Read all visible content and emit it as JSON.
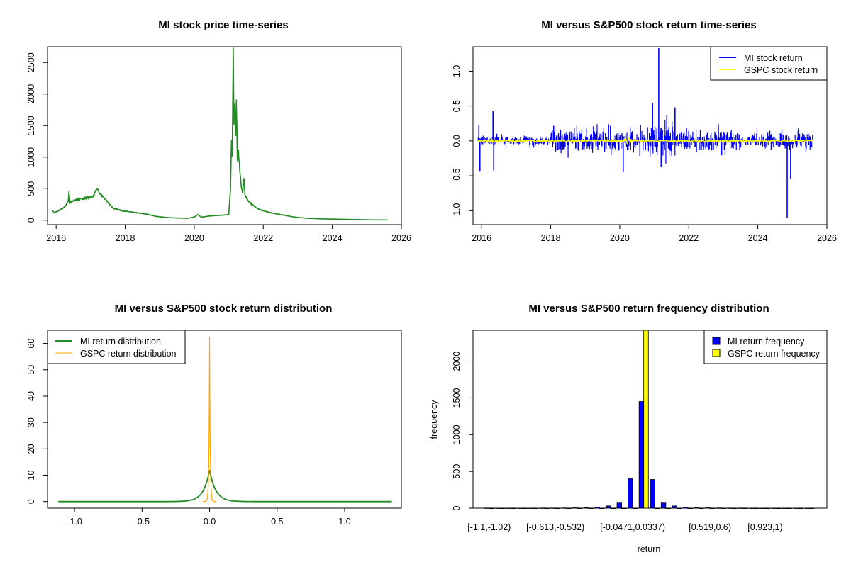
{
  "chart_data": [
    {
      "type": "line",
      "title": "MI stock price time-series",
      "xlabel": "",
      "ylabel": "",
      "xlim": [
        2015.75,
        2026
      ],
      "ylim": [
        -70,
        2750
      ],
      "xticks": [
        2016,
        2018,
        2020,
        2022,
        2024,
        2026
      ],
      "yticks": [
        0,
        500,
        1000,
        1500,
        2000,
        2500
      ],
      "series": [
        {
          "name": "MI stock price",
          "color": "#228B22",
          "points": [
            [
              2015.9,
              150
            ],
            [
              2015.95,
              120
            ],
            [
              2016.1,
              160
            ],
            [
              2016.25,
              210
            ],
            [
              2016.35,
              300
            ],
            [
              2016.37,
              460
            ],
            [
              2016.4,
              280
            ],
            [
              2016.55,
              320
            ],
            [
              2016.75,
              340
            ],
            [
              2016.95,
              360
            ],
            [
              2017.1,
              390
            ],
            [
              2017.15,
              480
            ],
            [
              2017.2,
              500
            ],
            [
              2017.25,
              430
            ],
            [
              2017.4,
              350
            ],
            [
              2017.55,
              250
            ],
            [
              2017.65,
              190
            ],
            [
              2017.8,
              170
            ],
            [
              2017.9,
              150
            ],
            [
              2018.05,
              140
            ],
            [
              2018.3,
              120
            ],
            [
              2018.6,
              100
            ],
            [
              2018.9,
              60
            ],
            [
              2019.3,
              40
            ],
            [
              2019.8,
              30
            ],
            [
              2020.0,
              50
            ],
            [
              2020.1,
              90
            ],
            [
              2020.2,
              50
            ],
            [
              2020.5,
              70
            ],
            [
              2020.8,
              80
            ],
            [
              2021.0,
              90
            ],
            [
              2021.05,
              500
            ],
            [
              2021.08,
              1300
            ],
            [
              2021.1,
              1000
            ],
            [
              2021.13,
              2700
            ],
            [
              2021.15,
              1500
            ],
            [
              2021.17,
              1900
            ],
            [
              2021.2,
              1300
            ],
            [
              2021.22,
              1950
            ],
            [
              2021.25,
              950
            ],
            [
              2021.28,
              1100
            ],
            [
              2021.32,
              800
            ],
            [
              2021.36,
              550
            ],
            [
              2021.4,
              420
            ],
            [
              2021.44,
              660
            ],
            [
              2021.47,
              400
            ],
            [
              2021.55,
              320
            ],
            [
              2021.65,
              260
            ],
            [
              2021.75,
              220
            ],
            [
              2021.85,
              180
            ],
            [
              2022.0,
              150
            ],
            [
              2022.2,
              120
            ],
            [
              2022.5,
              90
            ],
            [
              2022.9,
              50
            ],
            [
              2023.3,
              30
            ],
            [
              2023.8,
              20
            ],
            [
              2024.3,
              15
            ],
            [
              2024.8,
              10
            ],
            [
              2025.2,
              5
            ],
            [
              2025.6,
              5
            ]
          ]
        }
      ]
    },
    {
      "type": "line",
      "title": "MI versus S&P500 stock return time-series",
      "xlabel": "",
      "ylabel": "",
      "xlim": [
        2015.75,
        2026
      ],
      "ylim": [
        -1.2,
        1.35
      ],
      "xticks": [
        2016,
        2018,
        2020,
        2022,
        2024,
        2026
      ],
      "yticks": [
        -1.0,
        -0.5,
        0.0,
        0.5,
        1.0
      ],
      "ytick_labels": [
        "-1.0",
        "-0.5",
        "0.0",
        "0.5",
        "1.0"
      ],
      "xrange": [
        2015.9,
        2025.6
      ],
      "series": [
        {
          "name": "MI stock return",
          "color": "#0000FF"
        },
        {
          "name": "GSPC stock return",
          "color": "#FFFF00"
        }
      ],
      "spikes": [
        [
          2015.92,
          0.22
        ],
        [
          2015.95,
          -0.43
        ],
        [
          2016.33,
          0.43
        ],
        [
          2016.35,
          -0.42
        ],
        [
          2020.1,
          -0.45
        ],
        [
          2021.13,
          1.33
        ],
        [
          2021.2,
          -0.37
        ],
        [
          2020.95,
          0.54
        ],
        [
          2021.6,
          0.48
        ],
        [
          2024.85,
          -1.1
        ],
        [
          2024.95,
          -0.55
        ]
      ],
      "legend": [
        "MI stock return",
        "GSPC stock return"
      ],
      "legend_position": "top-right"
    },
    {
      "type": "line",
      "title": "MI versus S&P500 stock return distribution",
      "xlabel": "",
      "ylabel": "",
      "xlim": [
        -1.2,
        1.42
      ],
      "ylim": [
        -2.5,
        65
      ],
      "xticks": [
        -1.0,
        -0.5,
        0.0,
        0.5,
        1.0
      ],
      "xtick_labels": [
        "-1.0",
        "-0.5",
        "0.0",
        "0.5",
        "1.0"
      ],
      "yticks": [
        0,
        10,
        20,
        30,
        40,
        50,
        60
      ],
      "series": [
        {
          "name": "MI return distribution",
          "color": "#228B22",
          "peak": 12,
          "scale": 0.045,
          "range": [
            -1.12,
            1.35
          ]
        },
        {
          "name": "GSPC return distribution",
          "color": "#FFA500",
          "peak": 62.5,
          "scale": 0.007,
          "range": [
            -0.05,
            0.05
          ]
        }
      ],
      "legend": [
        "MI return distribution",
        "GSPC return distribution"
      ],
      "legend_position": "top-left"
    },
    {
      "type": "bar",
      "title": "MI versus S&P500 return frequency distribution",
      "xlabel": "return",
      "ylabel": "frequency",
      "ylim": [
        0,
        2420
      ],
      "yticks": [
        0,
        500,
        1000,
        1500,
        2000
      ],
      "category_labels": [
        "[-1.1,-1.02)",
        "[-0.613,-0.532)",
        "[-0.0471,0.0337)",
        "[0.519,0.6)",
        "[0.923,1)"
      ],
      "category_label_bins": [
        0,
        6,
        13,
        20,
        25
      ],
      "n_bins": 30,
      "series": [
        {
          "name": "MI return frequency",
          "color": "#0000FF",
          "values": [
            2,
            1,
            1,
            1,
            1,
            2,
            2,
            3,
            5,
            8,
            15,
            30,
            80,
            400,
            1450,
            390,
            80,
            30,
            15,
            8,
            5,
            3,
            2,
            2,
            1,
            1,
            1,
            1,
            1,
            1
          ]
        },
        {
          "name": "GSPC return frequency",
          "color": "#FFFF00",
          "values": [
            0,
            0,
            0,
            0,
            0,
            0,
            0,
            0,
            0,
            0,
            0,
            0,
            0,
            0,
            2450,
            0,
            0,
            0,
            0,
            0,
            0,
            0,
            0,
            0,
            0,
            0,
            0,
            0,
            0,
            0
          ]
        }
      ],
      "legend": [
        "MI return frequency",
        "GSPC return frequency"
      ],
      "legend_position": "top-right"
    }
  ]
}
